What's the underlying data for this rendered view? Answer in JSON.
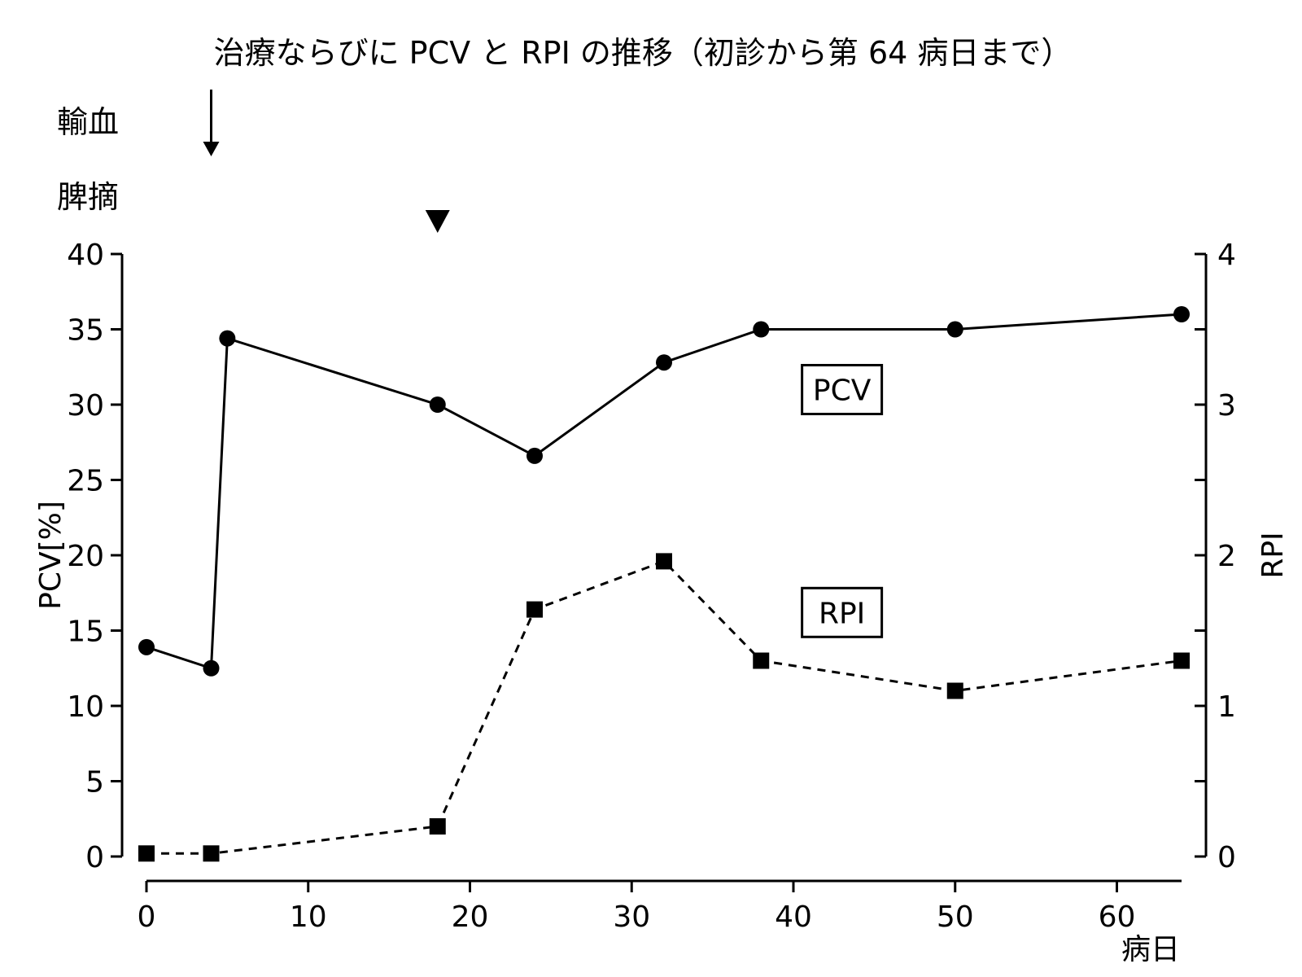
{
  "chart_data": {
    "type": "line",
    "title": "治療ならびに PCV と RPI の推移（初診から第 64 病日まで）",
    "xlabel": "病日",
    "ylabel_left": "PCV[%]",
    "ylabel_right": "RPI",
    "xlim": [
      0,
      64
    ],
    "ylim_left": [
      0,
      40
    ],
    "ylim_right": [
      0,
      4
    ],
    "x_ticks": [
      0,
      10,
      20,
      30,
      40,
      50,
      60
    ],
    "y_left_ticks": [
      0,
      5,
      10,
      15,
      20,
      25,
      30,
      35,
      40
    ],
    "y_right_ticks": [
      0,
      1,
      2,
      3,
      4
    ],
    "grid": false,
    "series": [
      {
        "name": "PCV",
        "axis": "left",
        "line_style": "solid",
        "marker": "circle",
        "x": [
          0,
          4,
          5,
          18,
          24,
          32,
          38,
          50,
          64
        ],
        "y": [
          13.9,
          12.5,
          34.4,
          30.0,
          26.6,
          32.8,
          35.0,
          35.0,
          36.0
        ]
      },
      {
        "name": "RPI",
        "axis": "right",
        "line_style": "dashed",
        "marker": "square",
        "x": [
          0,
          4,
          18,
          24,
          32,
          38,
          50,
          64
        ],
        "y": [
          0.02,
          0.02,
          0.2,
          1.64,
          1.96,
          1.3,
          1.1,
          1.3
        ]
      }
    ],
    "annotations": [
      {
        "label": "輸血",
        "x": 4,
        "marker": "arrow-down"
      },
      {
        "label": "脾摘",
        "x": 18,
        "marker": "triangle-down"
      }
    ],
    "series_labels": [
      {
        "text": "PCV",
        "x": 43,
        "y_left": 31
      },
      {
        "text": "RPI",
        "x": 43,
        "y_left": 16.2
      }
    ]
  }
}
